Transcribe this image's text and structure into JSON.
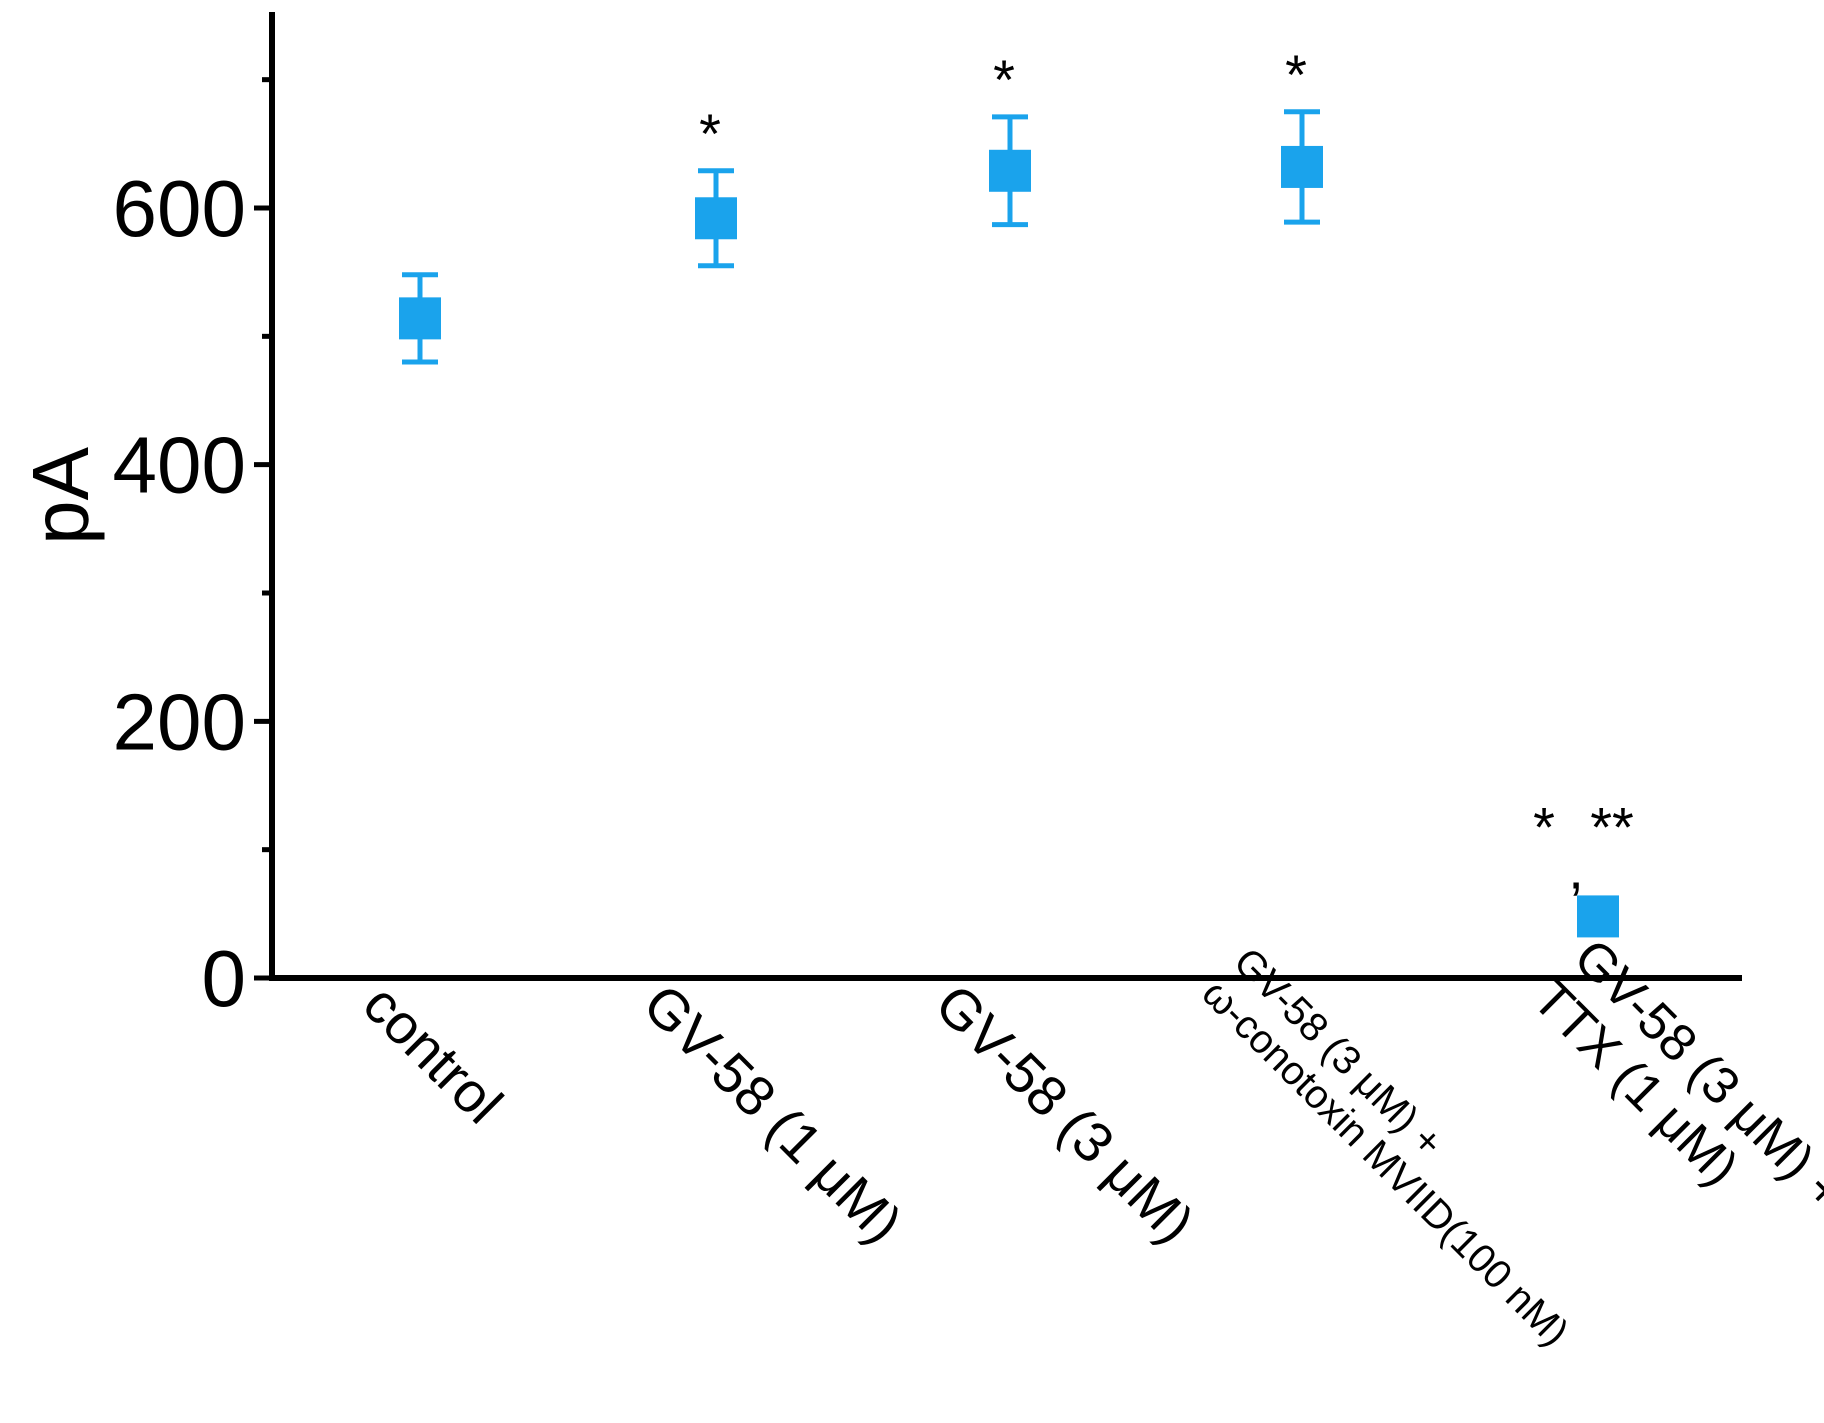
{
  "chart_data": {
    "type": "scatter",
    "title": "",
    "xlabel": "",
    "ylabel": "pA",
    "ylim": [
      0,
      750
    ],
    "yticks": [
      0,
      200,
      400,
      600
    ],
    "grid": false,
    "legend": "none",
    "marker_color": "#1aa3ec",
    "categories": [
      [
        "control"
      ],
      [
        "GV-58 (1 μM)"
      ],
      [
        "GV-58 (3 μM)"
      ],
      [
        "GV-58 (3 μM) +",
        "ω-conotoxin MVIID(100 nM)"
      ],
      [
        "GV-58 (3 μM) +",
        "TTX (1 μM)"
      ]
    ],
    "series": [
      {
        "values": [
          514,
          592,
          629,
          632,
          48
        ],
        "error": [
          34,
          37,
          42,
          43,
          8
        ],
        "significance": [
          "",
          "*",
          "*",
          "*",
          "*,**"
        ]
      }
    ]
  }
}
